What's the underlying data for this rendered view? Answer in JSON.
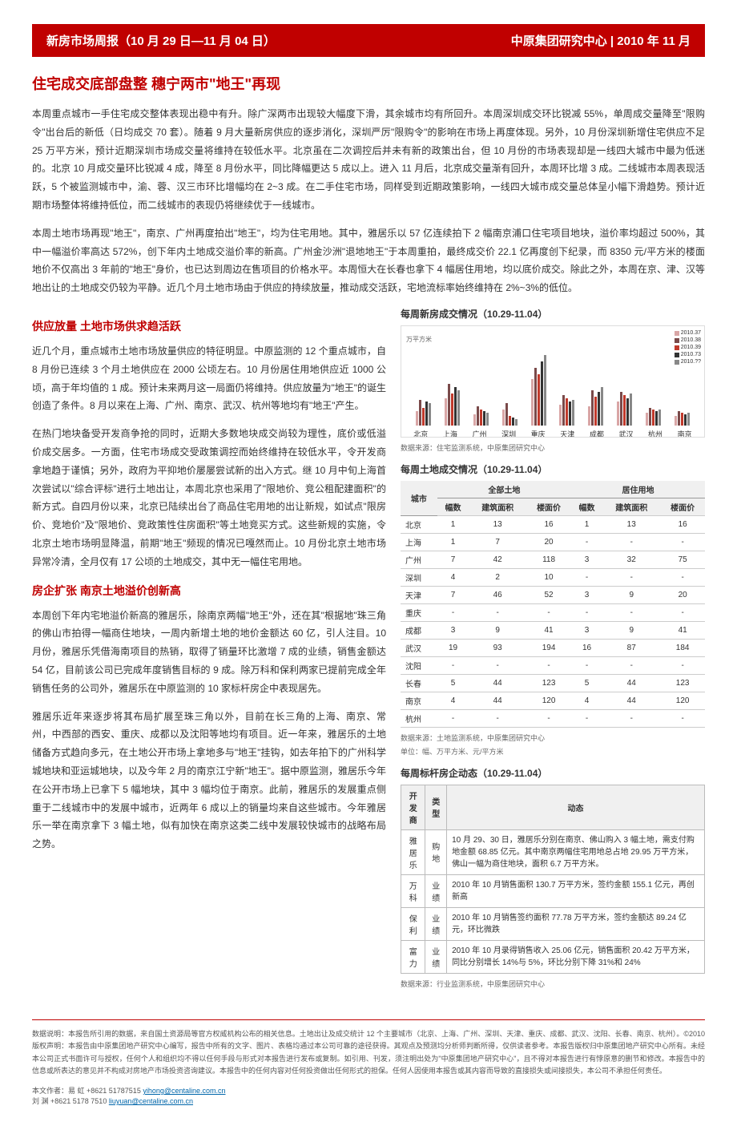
{
  "header": {
    "left": "新房市场周报（10 月 29 日—11 月 04 日）",
    "right": "中原集团研究中心 | 2010 年 11 月"
  },
  "mainTitle": "住宅成交底部盘整 穗宁两市\"地王\"再现",
  "para1": "本周重点城市一手住宅成交整体表现出稳中有升。除广深两市出现较大幅度下滑，其余城市均有所回升。本周深圳成交环比锐减 55%，单周成交量降至\"限购令\"出台后的新低（日均成交 70 套）。随着 9 月大量新房供应的逐步消化，深圳严厉\"限购令\"的影响在市场上再度体现。另外，10 月份深圳新增住宅供应不足 25 万平方米，预计近期深圳市场成交量将维持在较低水平。北京虽在二次调控后并未有新的政策出台，但 10 月份的市场表现却是一线四大城市中最为低迷的。北京 10 月成交量环比锐减 4 成，降至 8 月份水平，同比降幅更达 5 成以上。进入 11 月后，北京成交量渐有回升，本周环比增 3 成。二线城市本周表现活跃，5 个被监测城市中，渝、蓉、汉三市环比增幅均在 2~3 成。在二手住宅市场，同样受到近期政策影响，一线四大城市成交量总体呈小幅下滑趋势。预计近期市场整体将维持低位，而二线城市的表现仍将继续优于一线城市。",
  "para2": "本周土地市场再现\"地王\"，南京、广州再度拍出\"地王\"，均为住宅用地。其中，雅居乐以 57 亿连续拍下 2 幅南京浦口住宅项目地块，溢价率均超过 500%，其中一幅溢价率高达 572%，创下年内土地成交溢价率的新高。广州金沙洲\"退地地王\"于本周重拍，最终成交价 22.1 亿再度创下纪录，而 8350 元/平方米的楼面地价不仅高出 3 年前的\"地王\"身价，也已达到周边在售项目的价格水平。本周恒大在长春也拿下 4 幅居住用地，均以底价成交。除此之外，本周在京、津、汉等地出让的土地成交仍较为平静。近几个月土地市场由于供应的持续放量，推动成交活跃，宅地流标率始终维持在 2%~3%的低位。",
  "sub1": {
    "title": "供应放量 土地市场供求趋活跃",
    "p1": "近几个月，重点城市土地市场放量供应的特征明显。中原监测的 12 个重点城市，自 8 月份已连续 3 个月土地供应在 2000 公顷左右。10 月份居住用地供应近 1000 公顷，高于年均值的 1 成。预计未来两月这一局面仍将维持。供应放量为\"地王\"的诞生创造了条件。8 月以来在上海、广州、南京、武汉、杭州等地均有\"地王\"产生。",
    "p2": "在热门地块备受开发商争抢的同时，近期大多数地块成交尚较为理性，底价或低溢价成交居多。一方面，住宅市场成交受政策调控而始终维持在较低水平，令开发商拿地趋于谨慎；另外，政府为平抑地价屡屡尝试新的出入方式。继 10 月中旬上海首次尝试以\"综合评标\"进行土地出让，本周北京也采用了\"限地价、竞公租配建面积\"的新方式。自四月份以来，北京已陆续出台了商品住宅用地的出让新规，如试点\"限房价、竞地价\"及\"限地价、竞政策性住房面积\"等土地竞买方式。这些新规的实施，令北京土地市场明显降温，前期\"地王\"频现的情况已嘎然而止。10 月份北京土地市场异常冷清，全月仅有 17 公顷的土地成交，其中无一幅住宅用地。"
  },
  "sub2": {
    "title": "房企扩张 南京土地溢价创新高",
    "p1": "本周创下年内宅地溢价新高的雅居乐，除南京两幅\"地王\"外，还在其\"根据地\"珠三角的佛山市拍得一幅商住地块，一周内新增土地的地价金额达 60 亿，引人注目。10 月份，雅居乐凭借海南项目的热销，取得了销量环比激增 7 成的业绩，销售金额达 54 亿，目前该公司已完成年度销售目标的 9 成。除万科和保利两家已提前完成全年销售任务的公司外，雅居乐在中原监测的 10 家标杆房企中表现居先。",
    "p2": "雅居乐近年来逐步将其布局扩展至珠三角以外，目前在长三角的上海、南京、常州，中西部的西安、重庆、成都以及沈阳等地均有项目。近一年来，雅居乐的土地储备方式趋向多元，在土地公开市场上拿地多与\"地王\"挂钩，如去年拍下的广州科学城地块和亚运城地块，以及今年 2 月的南京江宁新\"地王\"。据中原监测，雅居乐今年在公开市场上已拿下 5 幅地块，其中 3 幅均位于南京。此前，雅居乐的发展重点侧重于二线城市中的发展中城市，近两年 6 成以上的销量均来自这些城市。今年雅居乐一举在南京拿下 3 幅土地，似有加快在南京这类二线中发展较快城市的战略布局之势。"
  },
  "chart": {
    "title": "每周新房成交情况（10.29-11.04）",
    "ylabel": "万平方米",
    "cities": [
      "北京",
      "上海",
      "广州",
      "深圳",
      "重庆",
      "天津",
      "成都",
      "武汉",
      "杭州",
      "南京"
    ],
    "series": [
      {
        "label": "2010.37",
        "color": "#d9a6a6"
      },
      {
        "label": "2010.38",
        "color": "#7a4a4a"
      },
      {
        "label": "2010.39",
        "color": "#c0392b"
      },
      {
        "label": "2010.73",
        "color": "#333333"
      },
      {
        "label": "2010.??",
        "color": "#888888"
      }
    ],
    "values": [
      [
        18,
        32,
        22,
        30,
        28
      ],
      [
        34,
        52,
        40,
        48,
        44
      ],
      [
        14,
        24,
        20,
        18,
        16
      ],
      [
        20,
        28,
        12,
        10,
        8
      ],
      [
        58,
        72,
        64,
        80,
        88
      ],
      [
        26,
        38,
        34,
        30,
        32
      ],
      [
        24,
        44,
        36,
        42,
        48
      ],
      [
        30,
        42,
        38,
        34,
        40
      ],
      [
        16,
        22,
        20,
        18,
        20
      ],
      [
        12,
        18,
        16,
        14,
        16
      ]
    ],
    "ymax": 100,
    "source": "数据来源：住宅监测系统，中原集团研究中心"
  },
  "landTable": {
    "title": "每周土地成交情况（10.29-11.04）",
    "group1": "全部土地",
    "group2": "居住用地",
    "cols": [
      "城市",
      "幅数",
      "建筑面积",
      "楼面价",
      "幅数",
      "建筑面积",
      "楼面价"
    ],
    "rows": [
      [
        "北京",
        "1",
        "13",
        "16",
        "1",
        "13",
        "16"
      ],
      [
        "上海",
        "1",
        "7",
        "20",
        "-",
        "-",
        "-"
      ],
      [
        "广州",
        "7",
        "42",
        "118",
        "3",
        "32",
        "75"
      ],
      [
        "深圳",
        "4",
        "2",
        "10",
        "-",
        "-",
        "-"
      ],
      [
        "天津",
        "7",
        "46",
        "52",
        "3",
        "9",
        "20"
      ],
      [
        "重庆",
        "-",
        "-",
        "-",
        "-",
        "-",
        "-"
      ],
      [
        "成都",
        "3",
        "9",
        "41",
        "3",
        "9",
        "41"
      ],
      [
        "武汉",
        "19",
        "93",
        "194",
        "16",
        "87",
        "184"
      ],
      [
        "沈阳",
        "-",
        "-",
        "-",
        "-",
        "-",
        "-"
      ],
      [
        "长春",
        "5",
        "44",
        "123",
        "5",
        "44",
        "123"
      ],
      [
        "南京",
        "4",
        "44",
        "120",
        "4",
        "44",
        "120"
      ],
      [
        "杭州",
        "-",
        "-",
        "-",
        "-",
        "-",
        "-"
      ]
    ],
    "source": "数据来源：土地监测系统，中原集团研究中心",
    "unit": "单位：幅、万平方米、元/平方米"
  },
  "devTable": {
    "title": "每周标杆房企动态（10.29-11.04）",
    "cols": [
      "开发商",
      "类型",
      "动态"
    ],
    "rows": [
      [
        "雅居乐",
        "购地",
        "10 月 29、30 日，雅居乐分别在南京、佛山购入 3 幅土地，需支付购地金额 68.85 亿元。其中南京两幅住宅用地总占地 29.95 万平方米，佛山一幅为商住地块，面积 6.7 万平方米。"
      ],
      [
        "万科",
        "业绩",
        "2010 年 10 月销售面积 130.7 万平方米，签约金额 155.1 亿元，再创新高"
      ],
      [
        "保利",
        "业绩",
        "2010 年 10 月销售签约面积 77.78 万平方米，签约金额达 89.24 亿元，环比微跌"
      ],
      [
        "富力",
        "业绩",
        "2010 年 10 月录得销售收入 25.06 亿元，销售面积 20.42 万平方米，同比分别增长 14%与 5%，环比分别下降 31%和 24%"
      ]
    ],
    "source": "数据来源：行业监测系统，中原集团研究中心"
  },
  "footer": {
    "disclaimer": "数据说明：本报告所引用的数据，来自国土资源局等官方权威机构公布的相关信息。土地出让及成交统计 12 个主要城市（北京、上海、广州、深圳、天津、重庆、成都、武汉、沈阳、长春、南京、杭州）。©2010 版权声明：本报告由中原集团地产研究中心编写，报告中所有的文字、图片、表格均通过本公司可靠的途径获得。其观点及预测均分析师判断所得，仅供读者参考。本报告版权归中原集团地产研究中心所有。未经本公司正式书面许可与授权，任何个人和组织均不得以任何手段与形式对本报告进行发布或复制。如引用、刊发，须注明出处为\"中原集团地产研究中心\"，且不得对本报告进行有悖原意的删节和修改。本报告中的信息或所表达的意见并不构成对房地产市场投资咨询建议。本报告中的任何内容对任何投资做出任何形式的担保。任何人因使用本报告或其内容而导致的直接损失或间接损失，本公司不承担任何责任。",
    "authors": [
      {
        "label": "本文作者：易  虹 +8621 51787515",
        "email": "yihong@centaline.com.cn"
      },
      {
        "label": "刘  渊 +8621 5178 7510",
        "email": "liuyuan@centaline.com.cn"
      }
    ]
  }
}
